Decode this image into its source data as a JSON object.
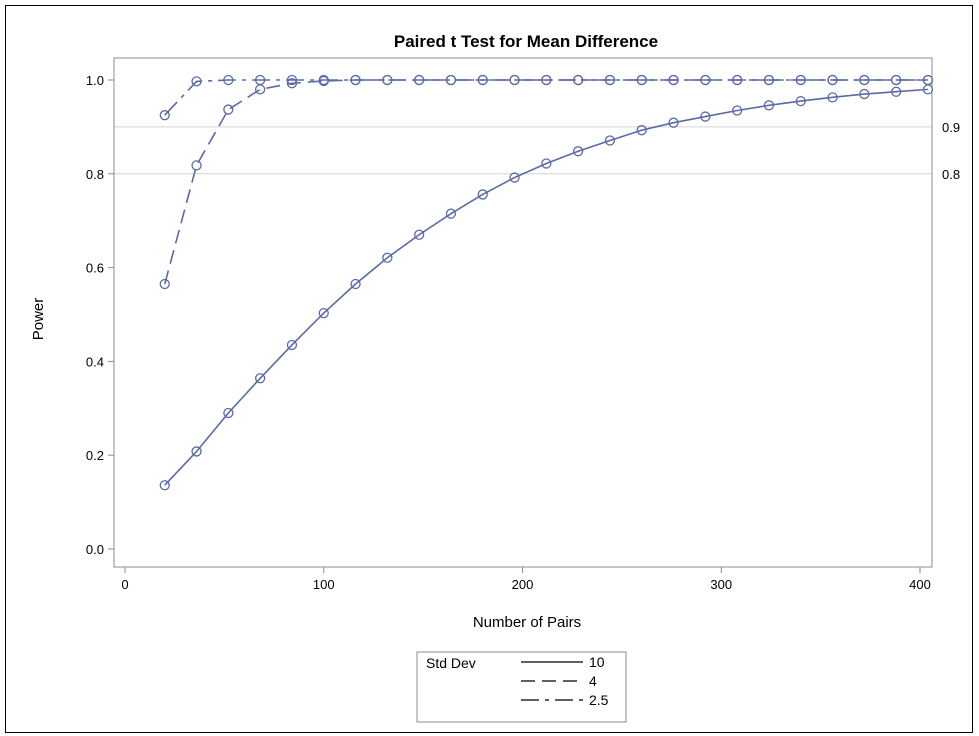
{
  "chart_data": {
    "type": "line",
    "title": "Paired t Test for Mean Difference",
    "xlabel": "Number of Pairs",
    "ylabel": "Power",
    "xlim": [
      0,
      400
    ],
    "ylim": [
      0,
      1
    ],
    "x_ticks": [
      "0",
      "100",
      "200",
      "300",
      "400"
    ],
    "y_ticks": [
      "0.0",
      "0.2",
      "0.4",
      "0.6",
      "0.8",
      "1.0"
    ],
    "reference_lines": [
      {
        "value": 0.9,
        "label": "0.9"
      },
      {
        "value": 0.8,
        "label": "0.8"
      }
    ],
    "x": [
      20,
      36,
      52,
      68,
      84,
      100,
      116,
      132,
      148,
      164,
      180,
      196,
      212,
      228,
      244,
      260,
      276,
      292,
      308,
      324,
      340,
      356,
      372,
      388,
      404
    ],
    "series": [
      {
        "name": "10",
        "dash": "solid",
        "values": [
          0.136,
          0.208,
          0.29,
          0.364,
          0.435,
          0.503,
          0.565,
          0.621,
          0.67,
          0.715,
          0.756,
          0.792,
          0.822,
          0.848,
          0.871,
          0.893,
          0.909,
          0.922,
          0.935,
          0.946,
          0.955,
          0.963,
          0.97,
          0.975,
          0.98
        ]
      },
      {
        "name": "4",
        "dash": "dashed",
        "values": [
          0.565,
          0.818,
          0.937,
          0.98,
          0.993,
          0.998,
          1.0,
          1.0,
          1.0,
          1.0,
          1.0,
          1.0,
          1.0,
          1.0,
          1.0,
          1.0,
          1.0,
          1.0,
          1.0,
          1.0,
          1.0,
          1.0,
          1.0,
          1.0,
          1.0
        ]
      },
      {
        "name": "2.5",
        "dash": "dashdot",
        "values": [
          0.925,
          0.997,
          1.0,
          1.0,
          1.0,
          1.0,
          1.0,
          1.0,
          1.0,
          1.0,
          1.0,
          1.0,
          1.0,
          1.0,
          1.0,
          1.0,
          1.0,
          1.0,
          1.0,
          1.0,
          1.0,
          1.0,
          1.0,
          1.0,
          1.0
        ]
      }
    ],
    "legend": {
      "title": "Std Dev",
      "position": "bottom-center"
    },
    "grid": false,
    "colors": {
      "line": "#5a6aa6",
      "reference": "#d4d4d4",
      "axis": "#8c8c8c"
    }
  }
}
